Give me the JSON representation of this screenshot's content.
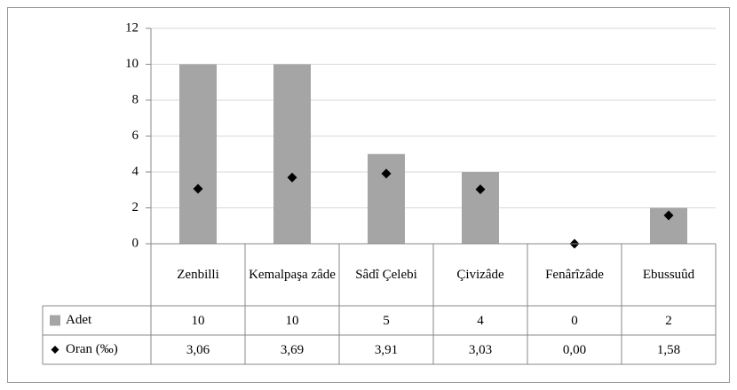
{
  "chart_data": {
    "type": "bar",
    "categories": [
      "Zenbilli",
      "Kemalpaşa zâde",
      "Sâdî Çelebi",
      "Çivizâde",
      "Fenârîzâde",
      "Ebussuûd"
    ],
    "series": [
      {
        "name": "Adet",
        "type": "bar",
        "color": "#a5a5a5",
        "values": [
          10,
          10,
          5,
          4,
          0,
          2
        ]
      },
      {
        "name": "Oran (‰)",
        "type": "marker",
        "marker": "diamond",
        "color": "#000000",
        "values": [
          3.06,
          3.69,
          3.91,
          3.03,
          0,
          1.58
        ],
        "value_labels": [
          "3,06",
          "3,69",
          "3,91",
          "3,03",
          "0,00",
          "1,58"
        ]
      }
    ],
    "ylim": [
      0,
      12
    ],
    "yticks": [
      0,
      2,
      4,
      6,
      8,
      10,
      12
    ],
    "grid": true,
    "data_table": true
  }
}
